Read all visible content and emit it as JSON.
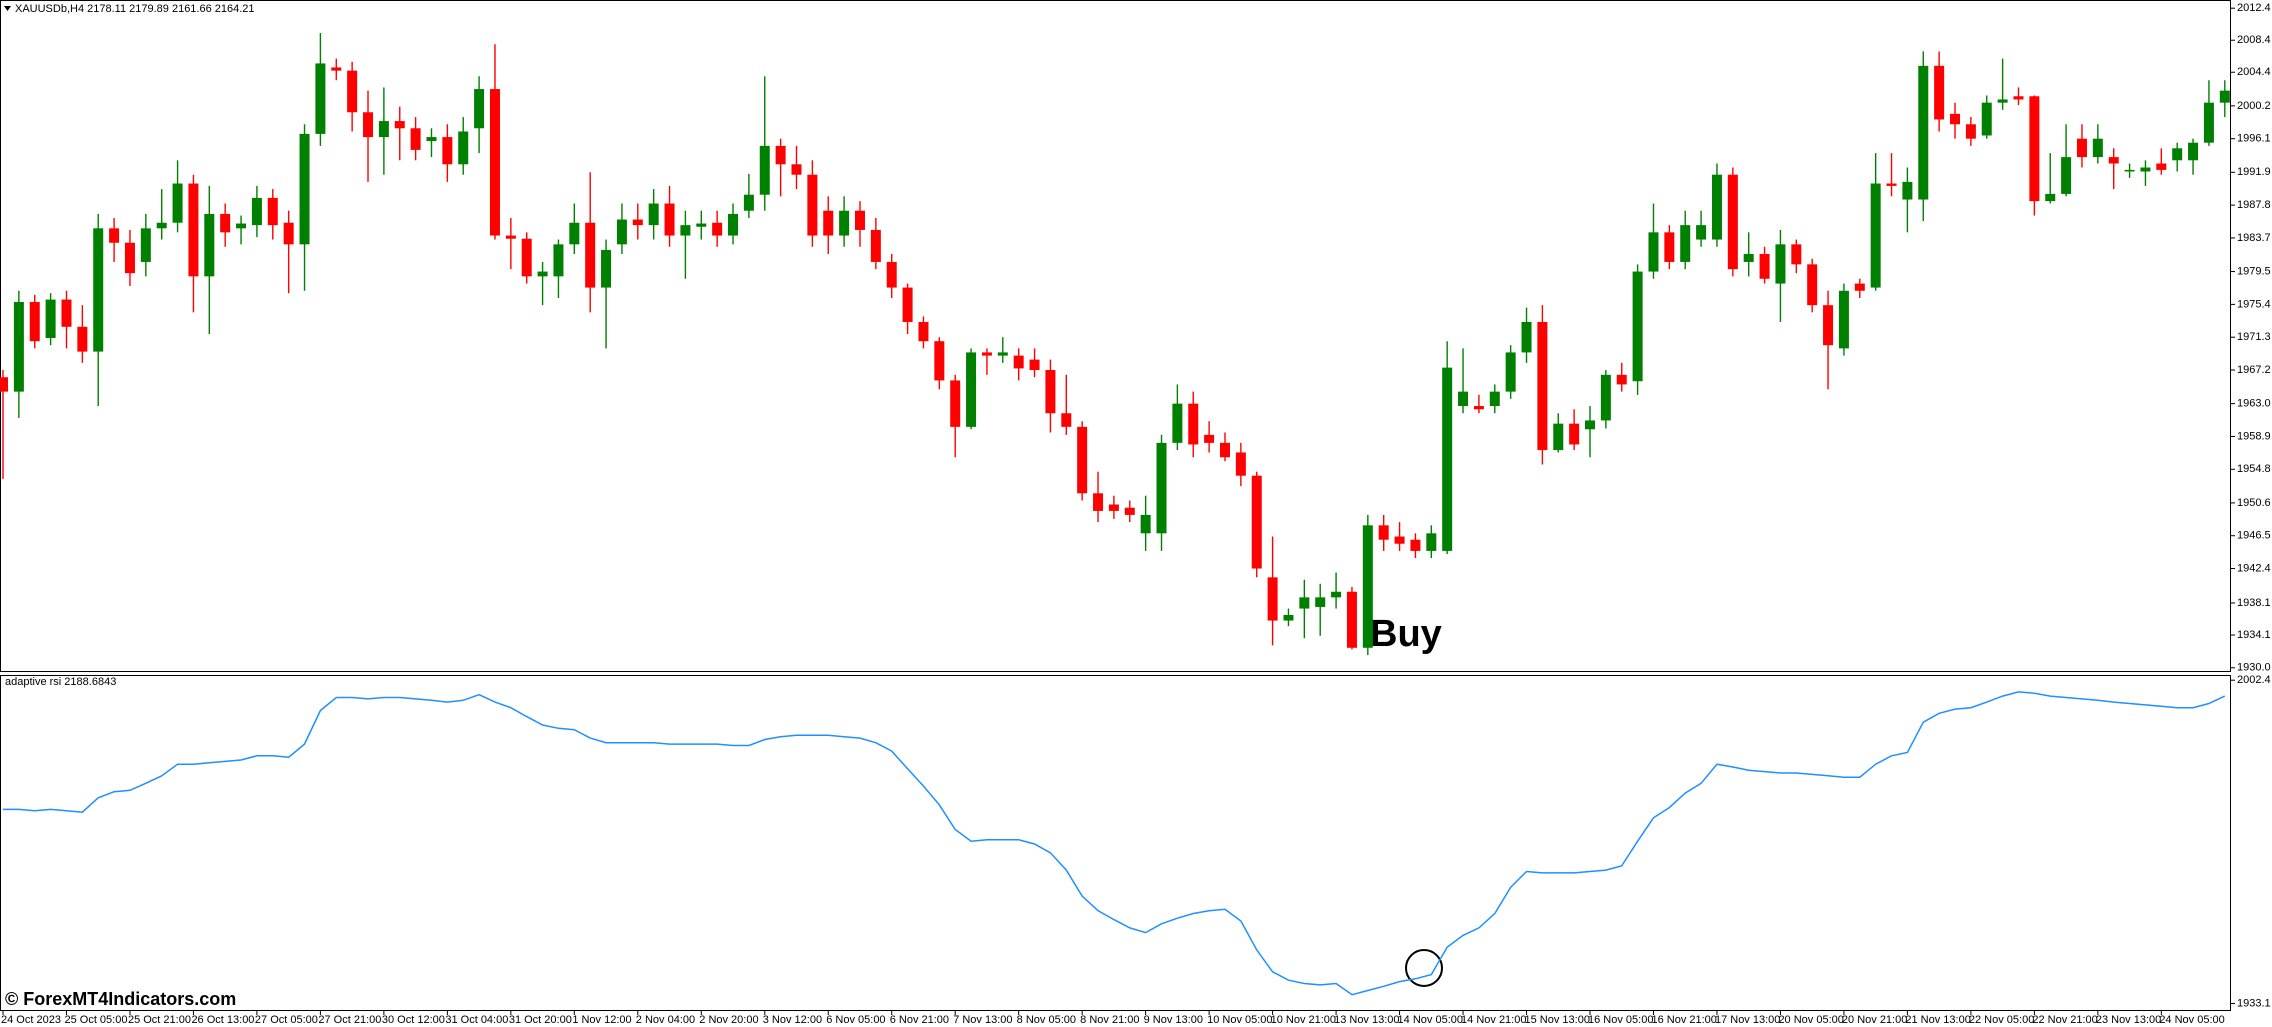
{
  "chart_data": [
    {
      "type": "candlestick",
      "title": "XAUUSDb,H4 2178.11 2179.89 2161.66 2164.21",
      "annotation": "Buy",
      "up_color": "#008000",
      "down_color": "#ff0000",
      "ylim": [
        1929.6,
        2013.3
      ],
      "yticks": [
        2012.4,
        2008.4,
        2004.4,
        2000.2,
        1996.1,
        1991.9,
        1987.8,
        1983.7,
        1979.5,
        1975.4,
        1971.3,
        1967.2,
        {
          "value": 1963,
          "label": "1963.0"
        },
        1958.9,
        1954.8,
        1950.6,
        1946.5,
        1942.4,
        1938.1,
        1934.1,
        {
          "value": 1930,
          "label": "1930.0"
        }
      ],
      "open": [
        1966.3,
        1964.5,
        1975.7,
        1971.2,
        1976.0,
        1972.6,
        1969.5,
        1984.9,
        1983.1,
        1980.7,
        1984.9,
        1985.6,
        1990.5,
        1978.9,
        1986.7,
        1984.9,
        1985.3,
        1988.7,
        1985.6,
        1982.9,
        1996.7,
        2005.0,
        2004.6,
        1999.4,
        1996.3,
        1998.3,
        1997.4,
        1995.8,
        1996.3,
        1992.9,
        1997.4,
        2002.3,
        1984.0,
        1983.6,
        1978.9,
        1978.9,
        1982.9,
        1985.6,
        1977.5,
        1982.9,
        1986.0,
        1985.3,
        1988.0,
        1984.0,
        1985.1,
        1985.6,
        1984.0,
        1987.1,
        1989.1,
        1995.2,
        1992.9,
        1991.6,
        1987.1,
        1984.0,
        1987.1,
        1984.7,
        1980.7,
        1977.5,
        1973.2,
        1970.8,
        1965.9,
        1960.1,
        1969.4,
        1969.0,
        1969.0,
        1968.5,
        1967.2,
        1961.8,
        1960.1,
        1951.8,
        1950.4,
        1950.0,
        1946.8,
        1946.8,
        1958.1,
        1963.0,
        1959.1,
        1958.1,
        1956.9,
        1954.0,
        1941.3,
        1935.9,
        1937.4,
        1937.6,
        1938.8,
        1939.5,
        1932.5,
        1947.8,
        1946.4,
        1946.0,
        1944.6,
        1944.6,
        1962.7,
        1962.7,
        1962.7,
        1964.5,
        1969.4,
        1973.2,
        1957.2,
        1960.5,
        1959.8,
        1960.9,
        1966.6,
        1965.8,
        1979.5,
        1984.4,
        1980.7,
        1983.5,
        1983.5,
        1991.6,
        1980.7,
        1981.7,
        1978.0,
        1982.9,
        1980.4,
        1975.3,
        1969.9,
        1978.0,
        1977.5,
        1990.5,
        1988.5,
        1988.5,
        2005.2,
        1999.2,
        1997.9,
        1996.5,
        2000.6,
        2001.4,
        2001.4,
        1988.3,
        1989.2,
        1996.1,
        1993.8,
        1993.8,
        1992.0,
        1992.0,
        1993.0,
        1993.4,
        1993.4,
        1995.6,
        2000.6
      ],
      "high": [
        1967.2,
        1977.1,
        1976.6,
        1976.8,
        1977.1,
        1975.3,
        1986.7,
        1986.2,
        1984.7,
        1986.7,
        1989.8,
        1993.4,
        1991.6,
        1990.2,
        1988.0,
        1986.5,
        1990.2,
        1989.8,
        1987.1,
        1997.9,
        2009.3,
        2006.1,
        2005.7,
        2002.1,
        2002.5,
        2000.1,
        1998.8,
        1997.4,
        1997.9,
        1998.8,
        2003.9,
        2007.9,
        1986.2,
        1984.4,
        1980.7,
        1983.5,
        1988.0,
        1991.9,
        1983.5,
        1988.0,
        1988.0,
        1989.8,
        1990.2,
        1987.1,
        1987.1,
        1987.1,
        1988.0,
        1991.7,
        2003.9,
        1996.1,
        1995.2,
        1993.4,
        1988.9,
        1988.9,
        1988.3,
        1986.2,
        1981.7,
        1978.0,
        1973.9,
        1971.3,
        1966.6,
        1969.9,
        1969.9,
        1971.3,
        1969.9,
        1969.9,
        1968.5,
        1966.6,
        1960.8,
        1954.5,
        1951.5,
        1950.9,
        1951.5,
        1959.1,
        1965.4,
        1964.5,
        1960.8,
        1959.4,
        1958.1,
        1954.5,
        1946.4,
        1937.4,
        1941.0,
        1940.5,
        1941.9,
        1940.1,
        1949.1,
        1949.1,
        1948.2,
        1946.8,
        1947.8,
        1970.8,
        1969.9,
        1964.1,
        1965.4,
        1970.3,
        1975.0,
        1975.3,
        1961.8,
        1962.3,
        1962.7,
        1967.2,
        1968.1,
        1980.4,
        1988.0,
        1985.3,
        1987.1,
        1987.1,
        1993.0,
        1992.5,
        1984.4,
        1982.6,
        1984.7,
        1983.5,
        1981.1,
        1977.1,
        1978.0,
        1978.6,
        1994.3,
        1994.3,
        1992.5,
        2007.0,
        2007.0,
        2000.6,
        1998.8,
        2001.5,
        2006.1,
        2002.5,
        2001.5,
        1994.3,
        1997.9,
        1997.9,
        1997.9,
        1994.9,
        1993.0,
        1993.4,
        1994.9,
        1995.6,
        1996.1,
        2003.4,
        2003.4
      ],
      "low": [
        1953.6,
        1961.2,
        1969.9,
        1970.3,
        1969.9,
        1968.1,
        1962.7,
        1980.7,
        1977.7,
        1978.9,
        1983.5,
        1984.4,
        1974.4,
        1971.7,
        1982.6,
        1982.9,
        1983.8,
        1983.5,
        1976.8,
        1977.1,
        1995.2,
        2003.4,
        1997.0,
        1990.7,
        1991.6,
        1993.4,
        1993.4,
        1993.8,
        1990.7,
        1991.6,
        1994.3,
        1983.5,
        1979.8,
        1978.0,
        1975.3,
        1976.2,
        1981.7,
        1974.4,
        1969.9,
        1981.7,
        1983.5,
        1983.5,
        1982.6,
        1978.6,
        1983.5,
        1982.6,
        1982.9,
        1986.2,
        1987.1,
        1988.9,
        1989.8,
        1982.6,
        1981.7,
        1982.6,
        1982.6,
        1979.8,
        1976.2,
        1971.7,
        1969.9,
        1964.8,
        1956.3,
        1959.8,
        1966.6,
        1968.1,
        1965.9,
        1966.3,
        1959.4,
        1959.1,
        1950.9,
        1948.2,
        1948.6,
        1948.2,
        1944.6,
        1944.6,
        1957.2,
        1956.3,
        1956.9,
        1955.8,
        1952.7,
        1941.3,
        1932.8,
        1935.2,
        1933.7,
        1934.0,
        1937.4,
        1932.3,
        1931.6,
        1944.6,
        1944.6,
        1943.7,
        1943.7,
        1944.2,
        1961.8,
        1961.8,
        1961.8,
        1963.6,
        1968.1,
        1955.4,
        1956.9,
        1957.2,
        1956.3,
        1959.9,
        1964.5,
        1964.1,
        1978.6,
        1979.8,
        1979.8,
        1982.6,
        1982.6,
        1978.9,
        1978.9,
        1978.0,
        1973.2,
        1979.3,
        1974.4,
        1964.8,
        1969.0,
        1976.2,
        1977.1,
        1988.9,
        1984.4,
        1985.8,
        1997.0,
        1996.1,
        1995.2,
        1996.1,
        1999.7,
        2000.3,
        1986.5,
        1988.0,
        1988.9,
        1992.5,
        1993.0,
        1989.8,
        1991.2,
        1990.2,
        1991.6,
        1992.0,
        1991.6,
        1995.2,
        1998.8
      ],
      "close": [
        1964.5,
        1975.7,
        1970.8,
        1976.0,
        1972.6,
        1969.5,
        1984.9,
        1983.1,
        1979.3,
        1984.9,
        1985.6,
        1990.5,
        1978.9,
        1986.7,
        1984.4,
        1985.5,
        1988.7,
        1985.3,
        1982.9,
        1996.7,
        2005.5,
        2004.6,
        1999.4,
        1996.3,
        1998.3,
        1997.4,
        1994.7,
        1996.3,
        1992.9,
        1997.0,
        2002.3,
        1984.0,
        1983.6,
        1978.9,
        1979.5,
        1982.9,
        1985.6,
        1977.5,
        1982.2,
        1986.0,
        1985.3,
        1988.0,
        1984.0,
        1985.3,
        1985.5,
        1984.0,
        1986.7,
        1989.1,
        1995.2,
        1992.9,
        1991.6,
        1984.0,
        1984.0,
        1987.1,
        1984.7,
        1980.7,
        1977.5,
        1973.2,
        1970.8,
        1965.9,
        1960.1,
        1969.4,
        1969.0,
        1969.4,
        1967.4,
        1967.2,
        1961.8,
        1960.1,
        1951.8,
        1949.6,
        1949.6,
        1949.1,
        1949.1,
        1958.1,
        1963.0,
        1957.9,
        1958.1,
        1956.3,
        1954.0,
        1942.4,
        1935.9,
        1936.6,
        1938.8,
        1938.8,
        1939.5,
        1932.5,
        1947.8,
        1946.0,
        1945.5,
        1944.6,
        1946.8,
        1967.5,
        1964.5,
        1962.3,
        1964.5,
        1969.4,
        1973.2,
        1957.2,
        1960.5,
        1957.9,
        1960.9,
        1966.6,
        1965.4,
        1979.5,
        1984.4,
        1980.7,
        1985.3,
        1985.3,
        1991.6,
        1979.8,
        1981.7,
        1978.6,
        1982.9,
        1980.4,
        1975.3,
        1970.3,
        1977.1,
        1977.1,
        1990.5,
        1990.2,
        1990.7,
        2005.2,
        1998.5,
        1997.9,
        1996.1,
        2000.6,
        2001.0,
        2001.0,
        1988.3,
        1989.2,
        1993.8,
        1993.8,
        1996.1,
        1993.0,
        1992.2,
        1992.5,
        1992.2,
        1994.9,
        1995.6,
        2000.6,
        2002.1
      ]
    },
    {
      "type": "line",
      "title": "adaptive rsi 2188.6843",
      "ylim": [
        1931.5,
        2003.3
      ],
      "yticks": [
        2002.4,
        1933.1
      ],
      "categories": [
        "24 Oct 2023",
        null,
        null,
        null,
        "25 Oct 05:00",
        null,
        null,
        null,
        "25 Oct 21:00",
        null,
        null,
        null,
        "26 Oct 13:00",
        null,
        null,
        null,
        "27 Oct 05:00",
        null,
        null,
        null,
        "27 Oct 21:00",
        null,
        null,
        null,
        "30 Oct 12:00",
        null,
        null,
        null,
        "31 Oct 04:00",
        null,
        null,
        null,
        "31 Oct 20:00",
        null,
        null,
        null,
        "1 Nov 12:00",
        null,
        null,
        null,
        "2 Nov 04:00",
        null,
        null,
        null,
        "2 Nov 20:00",
        null,
        null,
        null,
        "3 Nov 12:00",
        null,
        null,
        null,
        "6 Nov 05:00",
        null,
        null,
        null,
        "6 Nov 21:00",
        null,
        null,
        null,
        "7 Nov 13:00",
        null,
        null,
        null,
        "8 Nov 05:00",
        null,
        null,
        null,
        "8 Nov 21:00",
        null,
        null,
        null,
        "9 Nov 13:00",
        null,
        null,
        null,
        "10 Nov 05:00",
        null,
        null,
        null,
        "10 Nov 21:00",
        null,
        null,
        null,
        "13 Nov 13:00",
        null,
        null,
        null,
        "14 Nov 05:00",
        null,
        null,
        null,
        "14 Nov 21:00",
        null,
        null,
        null,
        "15 Nov 13:00",
        null,
        null,
        null,
        "16 Nov 05:00",
        null,
        null,
        null,
        "16 Nov 21:00",
        null,
        null,
        null,
        "17 Nov 13:00",
        null,
        null,
        null,
        "20 Nov 05:00",
        null,
        null,
        null,
        "20 Nov 21:00",
        null,
        null,
        null,
        "21 Nov 13:00",
        null,
        null,
        null,
        "22 Nov 05:00",
        null,
        null,
        null,
        "22 Nov 21:00",
        null,
        null,
        null,
        "23 Nov 13:00",
        null,
        null,
        null,
        "24 Nov 05:00",
        null,
        null,
        null,
        null
      ],
      "series": [
        {
          "color": "#1e90ff",
          "values": [
            1974.7,
            1974.7,
            1974.4,
            1974.7,
            1974.4,
            1974.1,
            1977.2,
            1978.5,
            1978.8,
            1980.3,
            1981.9,
            1984.4,
            1984.4,
            1984.7,
            1985.0,
            1985.3,
            1986.2,
            1986.2,
            1985.9,
            1988.7,
            1995.9,
            1998.7,
            1998.7,
            1998.4,
            1998.7,
            1998.7,
            1998.4,
            1998.1,
            1997.7,
            1998.1,
            1999.3,
            1997.7,
            1996.5,
            1994.6,
            1992.8,
            1992.1,
            1991.8,
            1990.0,
            1989.0,
            1989.0,
            1989.0,
            1989.0,
            1988.7,
            1988.7,
            1988.7,
            1988.7,
            1988.4,
            1988.4,
            1989.7,
            1990.3,
            1990.6,
            1990.6,
            1990.6,
            1990.3,
            1990.0,
            1989.0,
            1987.2,
            1983.4,
            1979.7,
            1975.7,
            1970.4,
            1967.9,
            1968.2,
            1968.2,
            1968.2,
            1967.3,
            1965.4,
            1961.7,
            1956.1,
            1953.0,
            1951.1,
            1949.3,
            1948.3,
            1950.2,
            1951.4,
            1952.4,
            1953.0,
            1953.3,
            1950.8,
            1944.6,
            1939.9,
            1938.1,
            1937.4,
            1937.1,
            1937.4,
            1935.0,
            1935.9,
            1936.8,
            1937.8,
            1938.4,
            1939.3,
            1945.2,
            1947.7,
            1949.3,
            1952.4,
            1958.0,
            1961.4,
            1961.1,
            1961.1,
            1961.1,
            1961.4,
            1961.7,
            1962.6,
            1967.9,
            1972.9,
            1975.1,
            1978.2,
            1980.3,
            1984.4,
            1983.8,
            1983.1,
            1982.8,
            1982.5,
            1982.5,
            1982.2,
            1981.9,
            1981.6,
            1981.6,
            1984.4,
            1986.2,
            1986.9,
            1993.4,
            1995.3,
            1996.2,
            1996.5,
            1997.7,
            1999.0,
            1999.9,
            1999.6,
            1999.0,
            1998.7,
            1998.4,
            1998.1,
            1997.7,
            1997.4,
            1997.1,
            1996.8,
            1996.5,
            1996.5,
            1997.4,
            1999.0
          ]
        }
      ]
    }
  ],
  "watermark": "© ForexMT4Indicators.com"
}
